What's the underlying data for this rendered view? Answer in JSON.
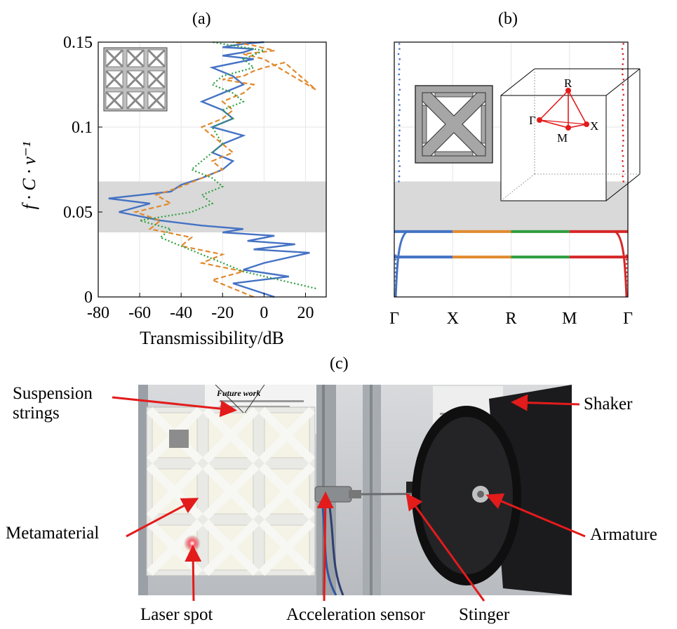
{
  "panels": {
    "a": {
      "label": "(a)"
    },
    "b": {
      "label": "(b)"
    },
    "c": {
      "label": "(c)"
    }
  },
  "chart_data": [
    {
      "type": "line",
      "panel": "(a)",
      "xlabel": "Transmissibility/dB",
      "ylabel": "f · C · v⁻¹",
      "xlim": [
        -80,
        30
      ],
      "ylim": [
        0,
        0.15
      ],
      "x_ticks": [
        "-80",
        "-60",
        "-40",
        "-20",
        "0",
        "20"
      ],
      "y_ticks": [
        "0",
        "0.05",
        "0.1",
        "0.15"
      ],
      "grid": true,
      "bandgap": [
        0.038,
        0.068
      ],
      "series": [
        {
          "color": "#4472c4",
          "style": "solid",
          "x": [
            5,
            -15,
            12,
            -10,
            0,
            22,
            -5,
            15,
            -8,
            5,
            -20,
            -10,
            -30,
            -50,
            -70,
            -55,
            -75,
            -45,
            -40,
            -30,
            -20,
            -15,
            -25,
            -20,
            -10,
            -25,
            -15,
            -20,
            -30,
            -20,
            -10,
            -15,
            -25,
            -5,
            -20,
            -10,
            -5,
            -20,
            -15,
            -10,
            0
          ],
          "y": [
            0.0,
            0.008,
            0.012,
            0.016,
            0.02,
            0.026,
            0.028,
            0.031,
            0.033,
            0.036,
            0.038,
            0.04,
            0.042,
            0.045,
            0.05,
            0.055,
            0.058,
            0.062,
            0.066,
            0.07,
            0.075,
            0.08,
            0.085,
            0.09,
            0.095,
            0.1,
            0.105,
            0.11,
            0.115,
            0.12,
            0.125,
            0.13,
            0.135,
            0.14,
            0.142,
            0.144,
            0.146,
            0.147,
            0.148,
            0.149,
            0.15
          ]
        },
        {
          "color": "#e08a2e",
          "style": "dashed",
          "x": [
            -5,
            -25,
            -10,
            -30,
            -20,
            -40,
            -35,
            -55,
            -50,
            -62,
            -45,
            -52,
            -40,
            -30,
            -20,
            -25,
            -15,
            -20,
            -25,
            -30,
            -20,
            -15,
            -20,
            -10,
            -5,
            -20,
            -10,
            -5,
            0,
            10,
            25,
            0,
            -10,
            5,
            -5,
            -15
          ],
          "y": [
            0.0,
            0.01,
            0.015,
            0.02,
            0.025,
            0.03,
            0.035,
            0.04,
            0.045,
            0.05,
            0.055,
            0.06,
            0.065,
            0.07,
            0.075,
            0.08,
            0.085,
            0.09,
            0.095,
            0.1,
            0.105,
            0.11,
            0.115,
            0.12,
            0.125,
            0.128,
            0.13,
            0.133,
            0.135,
            0.138,
            0.122,
            0.14,
            0.143,
            0.145,
            0.148,
            0.15
          ]
        },
        {
          "color": "#2e9e3e",
          "style": "dotted",
          "x": [
            25,
            -10,
            -20,
            -30,
            -40,
            -50,
            -45,
            -60,
            -35,
            -25,
            -30,
            -20,
            -25,
            -35,
            -30,
            -20,
            -25,
            -15,
            -20,
            -10,
            -15,
            -25,
            -20,
            -5,
            -10,
            0,
            -25
          ],
          "y": [
            0.005,
            0.015,
            0.02,
            0.025,
            0.03,
            0.035,
            0.04,
            0.045,
            0.05,
            0.055,
            0.06,
            0.065,
            0.07,
            0.075,
            0.08,
            0.09,
            0.1,
            0.105,
            0.11,
            0.115,
            0.12,
            0.125,
            0.13,
            0.135,
            0.14,
            0.145,
            0.15
          ]
        }
      ]
    },
    {
      "type": "line",
      "panel": "(b)",
      "x_ticks": [
        "Γ",
        "X",
        "R",
        "M",
        "Γ"
      ],
      "ylim": [
        0,
        0.15
      ],
      "grid": true,
      "bandgap": [
        0.038,
        0.068
      ],
      "bands": [
        0.0235,
        0.0385
      ],
      "segment_colors": [
        "#4472c4",
        "#e08a2e",
        "#2e9e3e",
        "#d62728"
      ],
      "brillouin_labels": [
        "R",
        "Γ",
        "X",
        "M"
      ]
    }
  ],
  "photo": {
    "annotations": {
      "suspension_line1": "Suspension",
      "suspension_line2": "strings",
      "metamaterial": "Metamaterial",
      "laser": "Laser spot",
      "accel": "Acceleration sensor",
      "stinger": "Stinger",
      "shaker": "Shaker",
      "armature": "Armature"
    },
    "poster_heading": "Future work",
    "arrow_color": "#e31b1b"
  }
}
